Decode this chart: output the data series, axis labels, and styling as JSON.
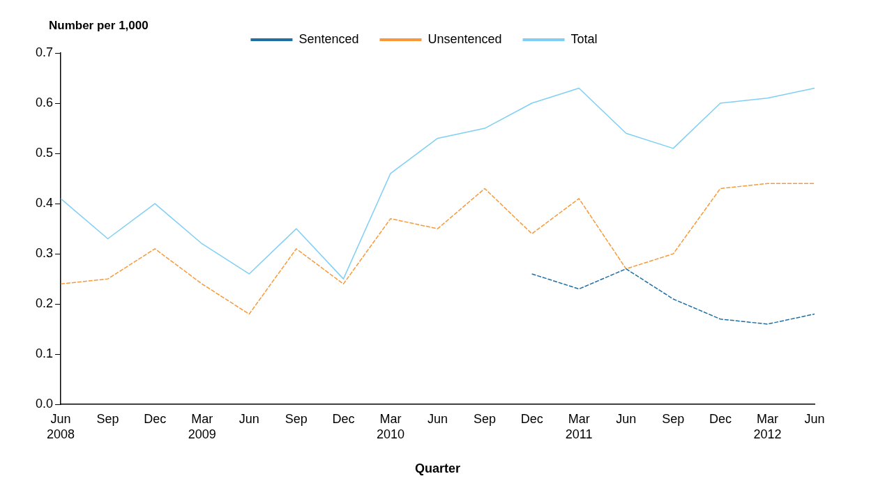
{
  "chart_data": {
    "type": "line",
    "xlabel": "Quarter",
    "ylabel": "Number per 1,000",
    "categories": [
      "Jun\n2008",
      "Sep",
      "Dec",
      "Mar\n2009",
      "Jun",
      "Sep",
      "Dec",
      "Mar\n2010",
      "Jun",
      "Sep",
      "Dec",
      "Mar\n2011",
      "Jun",
      "Sep",
      "Dec",
      "Mar\n2012",
      "Jun"
    ],
    "series": [
      {
        "name": "Sentenced",
        "color": "#1f6fa3",
        "line_style": "dashed",
        "values": [
          null,
          null,
          null,
          null,
          null,
          null,
          null,
          null,
          null,
          null,
          0.26,
          0.23,
          0.27,
          0.21,
          0.17,
          0.16,
          0.18
        ]
      },
      {
        "name": "Unsentenced",
        "color": "#f7993a",
        "line_style": "dashed",
        "values": [
          0.24,
          0.25,
          0.31,
          0.24,
          0.18,
          0.31,
          0.24,
          0.37,
          0.35,
          0.43,
          0.34,
          0.41,
          0.27,
          0.3,
          0.43,
          0.44,
          0.44
        ]
      },
      {
        "name": "Total",
        "color": "#7fcff5",
        "line_style": "solid",
        "values": [
          0.41,
          0.33,
          0.4,
          0.32,
          0.26,
          0.35,
          0.25,
          0.46,
          0.53,
          0.55,
          0.6,
          0.63,
          0.54,
          0.51,
          0.6,
          0.61,
          0.63
        ]
      }
    ],
    "ylim": [
      0,
      0.7
    ],
    "yticks": [
      {
        "value": 0,
        "label": "0.0"
      },
      {
        "value": 0.1,
        "label": "0.1"
      },
      {
        "value": 0.2,
        "label": "0.2"
      },
      {
        "value": 0.3,
        "label": "0.3"
      },
      {
        "value": 0.4,
        "label": "0.4"
      },
      {
        "value": 0.5,
        "label": "0.5"
      },
      {
        "value": 0.6,
        "label": "0.6"
      },
      {
        "value": 0.7,
        "label": "0.7"
      }
    ],
    "grid": false,
    "legend": "top",
    "marker": "none"
  }
}
